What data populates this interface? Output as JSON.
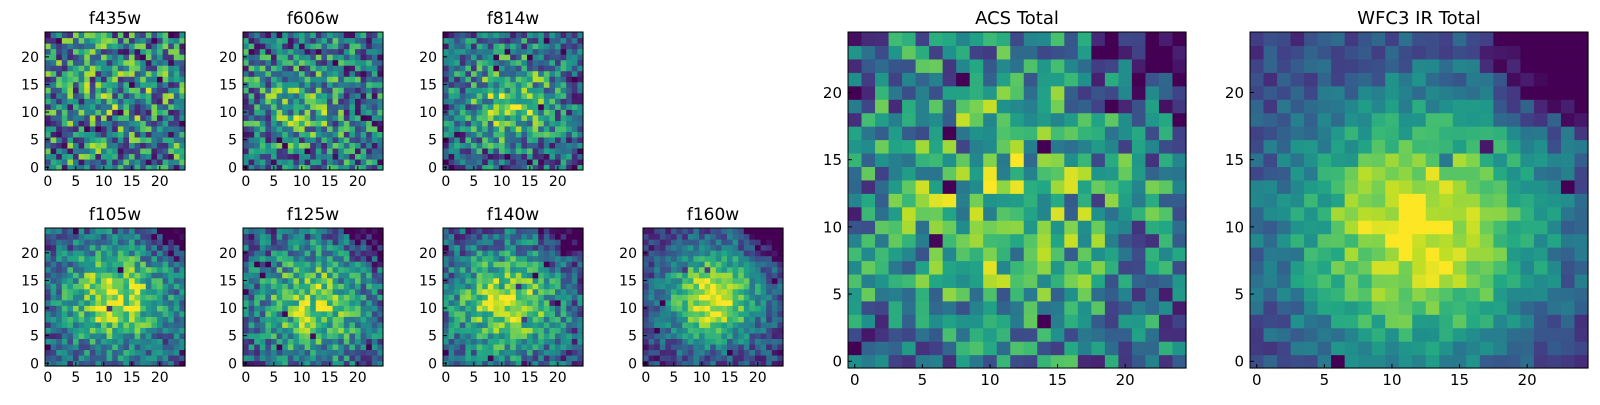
{
  "chart_data": [
    {
      "type": "heatmap",
      "title": "f435w",
      "xticks": [
        "0",
        "5",
        "10",
        "15",
        "20"
      ],
      "yticks": [
        "0",
        "5",
        "10",
        "15",
        "20"
      ],
      "xlim": [
        0,
        25
      ],
      "ylim": [
        0,
        25
      ],
      "colormap": "viridis"
    },
    {
      "type": "heatmap",
      "title": "f606w",
      "xticks": [
        "0",
        "5",
        "10",
        "15",
        "20"
      ],
      "yticks": [
        "0",
        "5",
        "10",
        "15",
        "20"
      ],
      "xlim": [
        0,
        25
      ],
      "ylim": [
        0,
        25
      ],
      "colormap": "viridis"
    },
    {
      "type": "heatmap",
      "title": "f814w",
      "xticks": [
        "0",
        "5",
        "10",
        "15",
        "20"
      ],
      "yticks": [
        "0",
        "5",
        "10",
        "15",
        "20"
      ],
      "xlim": [
        0,
        25
      ],
      "ylim": [
        0,
        25
      ],
      "colormap": "viridis"
    },
    {
      "type": "heatmap",
      "title": "f105w",
      "xticks": [
        "0",
        "5",
        "10",
        "15",
        "20"
      ],
      "yticks": [
        "0",
        "5",
        "10",
        "15",
        "20"
      ],
      "xlim": [
        0,
        25
      ],
      "ylim": [
        0,
        25
      ],
      "colormap": "viridis"
    },
    {
      "type": "heatmap",
      "title": "f125w",
      "xticks": [
        "0",
        "5",
        "10",
        "15",
        "20"
      ],
      "yticks": [
        "0",
        "5",
        "10",
        "15",
        "20"
      ],
      "xlim": [
        0,
        25
      ],
      "ylim": [
        0,
        25
      ],
      "colormap": "viridis"
    },
    {
      "type": "heatmap",
      "title": "f140w",
      "xticks": [
        "0",
        "5",
        "10",
        "15",
        "20"
      ],
      "yticks": [
        "0",
        "5",
        "10",
        "15",
        "20"
      ],
      "xlim": [
        0,
        25
      ],
      "ylim": [
        0,
        25
      ],
      "colormap": "viridis"
    },
    {
      "type": "heatmap",
      "title": "f160w",
      "xticks": [
        "0",
        "5",
        "10",
        "15",
        "20"
      ],
      "yticks": [
        "0",
        "5",
        "10",
        "15",
        "20"
      ],
      "xlim": [
        0,
        25
      ],
      "ylim": [
        0,
        25
      ],
      "colormap": "viridis"
    },
    {
      "type": "heatmap",
      "title": "ACS Total",
      "xticks": [
        "0",
        "5",
        "10",
        "15",
        "20"
      ],
      "yticks": [
        "0",
        "5",
        "10",
        "15",
        "20"
      ],
      "xlim": [
        0,
        25
      ],
      "ylim": [
        0,
        25
      ],
      "colormap": "viridis"
    },
    {
      "type": "heatmap",
      "title": "WFC3 IR Total",
      "xticks": [
        "0",
        "5",
        "10",
        "15",
        "20"
      ],
      "yticks": [
        "0",
        "5",
        "10",
        "15",
        "20"
      ],
      "xlim": [
        0,
        25
      ],
      "ylim": [
        0,
        25
      ],
      "colormap": "viridis"
    }
  ]
}
